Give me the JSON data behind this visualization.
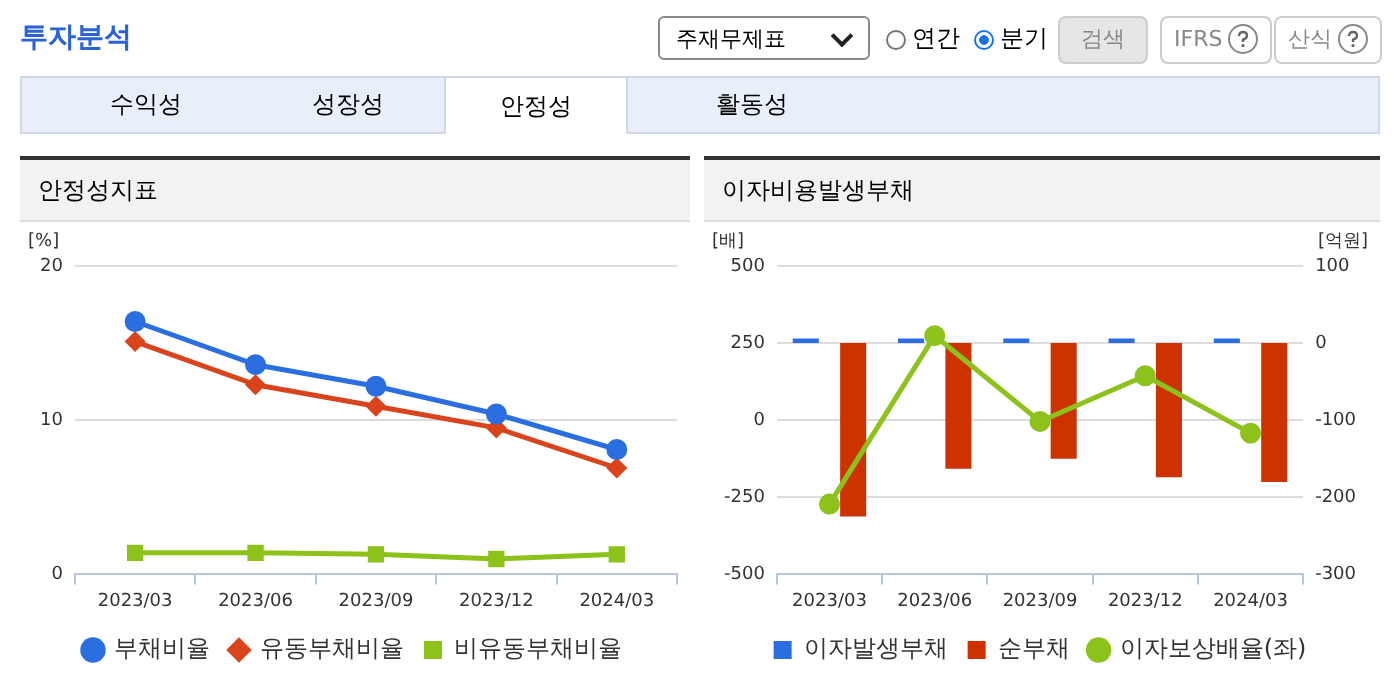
{
  "chart_data": [
    {
      "type": "other",
      "annotations": [
        "투자분석",
        "주재무제표",
        "연간",
        "분기",
        "검색",
        "IFRS",
        "산식",
        "수익성",
        "성장성",
        "안정성",
        "활동성"
      ]
    },
    {
      "type": "line",
      "title": "안정성지표",
      "ylabel": "[%]",
      "categories": [
        "2023/03",
        "2023/06",
        "2023/09",
        "2023/12",
        "2024/03"
      ],
      "ylim": [
        0,
        20
      ],
      "yticks": [
        0,
        10,
        20
      ],
      "grid": "y",
      "legend": "bottom",
      "line_style": "solid",
      "series": [
        {
          "name": "부채비율",
          "color": "#2a6ee0",
          "marker": "circle",
          "values": [
            16.4,
            13.6,
            12.2,
            10.4,
            8.1
          ]
        },
        {
          "name": "유동부채비율",
          "color": "#d9441c",
          "marker": "diamond",
          "values": [
            15.1,
            12.3,
            10.9,
            9.5,
            6.9
          ]
        },
        {
          "name": "비유동부채비율",
          "color": "#8cc21a",
          "marker": "square",
          "values": [
            1.4,
            1.4,
            1.3,
            1.0,
            1.3
          ]
        }
      ]
    },
    {
      "type": "bar",
      "title": "이자비용발생부채",
      "ylabel": "[배]",
      "y2label": "[억원]",
      "categories": [
        "2023/03",
        "2023/06",
        "2023/09",
        "2023/12",
        "2024/03"
      ],
      "ylim": [
        -500,
        500
      ],
      "yticks": [
        -500,
        -250,
        0,
        250,
        500
      ],
      "y2lim": [
        -300,
        100
      ],
      "y2ticks": [
        -300,
        -200,
        -100,
        0,
        100
      ],
      "grid": "y",
      "legend": "bottom",
      "series": [
        {
          "name": "이자발생부채",
          "type": "bar",
          "axis": "y2",
          "color": "#2a6ee0",
          "values": [
            6,
            6,
            6,
            6,
            6
          ]
        },
        {
          "name": "순부채",
          "type": "bar",
          "axis": "y2",
          "color": "#cc3300",
          "values": [
            -225,
            -163,
            -150,
            -174,
            -180
          ]
        },
        {
          "name": "이자보상배율(좌)",
          "type": "line",
          "axis": "y",
          "color": "#8cc21a",
          "marker": "circle",
          "values": [
            -272,
            274,
            -4,
            144,
            -42
          ]
        }
      ]
    }
  ]
}
